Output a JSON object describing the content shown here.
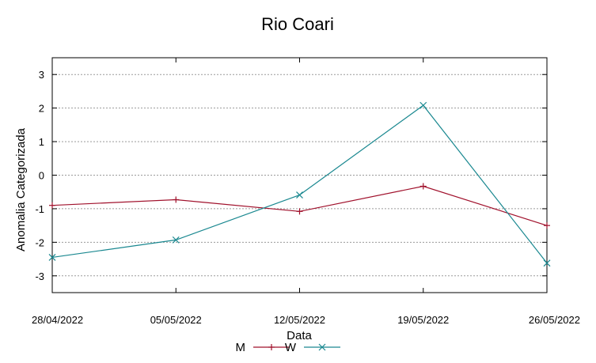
{
  "chart_data": {
    "type": "line",
    "title": "Rio Coari",
    "xlabel": "Data",
    "ylabel": "Anomalia Categorizada",
    "categories": [
      "28/04/2022",
      "05/05/2022",
      "12/05/2022",
      "19/05/2022",
      "26/05/2022"
    ],
    "x_tick_labels": [
      "28/04/2022",
      "05/05/2022",
      "12/05/2022",
      "19/05/2022",
      "26/05/2022"
    ],
    "y_tick_labels": [
      "3",
      "2",
      "1",
      "0",
      "-1",
      "-2",
      "-3"
    ],
    "ylim": [
      -3.5,
      3.5
    ],
    "grid": "horizontal dotted",
    "legend_position": "bottom",
    "series": [
      {
        "name": "M",
        "values": [
          -0.9,
          -0.73,
          -1.08,
          -0.33,
          -1.5
        ],
        "color": "#a0102b",
        "marker": "plus"
      },
      {
        "name": "W",
        "values": [
          -2.45,
          -1.93,
          -0.59,
          2.08,
          -2.62
        ],
        "color": "#1a8890",
        "marker": "x"
      }
    ]
  }
}
